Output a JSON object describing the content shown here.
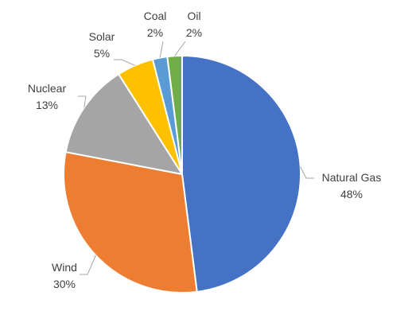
{
  "chart_data": {
    "type": "pie",
    "title": "",
    "slices": [
      {
        "name": "Natural Gas",
        "value": 48,
        "label": "48%",
        "color": "#4472c4"
      },
      {
        "name": "Wind",
        "value": 30,
        "label": "30%",
        "color": "#ed7d31"
      },
      {
        "name": "Nuclear",
        "value": 13,
        "label": "13%",
        "color": "#a5a5a5"
      },
      {
        "name": "Solar",
        "value": 5,
        "label": "5%",
        "color": "#ffc000"
      },
      {
        "name": "Coal",
        "value": 2,
        "label": "2%",
        "color": "#5b9bd5"
      },
      {
        "name": "Oil",
        "value": 2,
        "label": "2%",
        "color": "#70ad47"
      }
    ],
    "start_angle_deg": 0,
    "direction": "clockwise",
    "legend": "none",
    "data_labels": "outside with leader lines"
  }
}
